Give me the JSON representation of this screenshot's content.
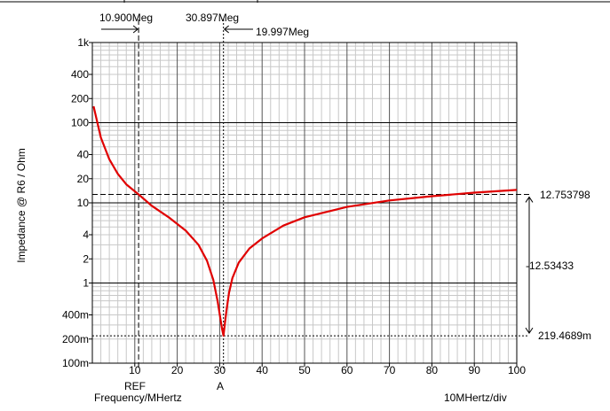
{
  "chart_data": {
    "type": "line",
    "ylabel": "Impedance @ R6 / Ohm",
    "xlabel": "Frequency/MHertz",
    "x_scale_label": "10MHertz/div",
    "xlim": [
      0,
      100
    ],
    "ylim": [
      0.1,
      1000
    ],
    "yscale": "log",
    "grid": true,
    "x_ticks": [
      "10",
      "20",
      "30",
      "40",
      "50",
      "60",
      "70",
      "80",
      "90",
      "100"
    ],
    "y_ticks": [
      {
        "label": "1k",
        "value": 1000
      },
      {
        "label": "400",
        "value": 400
      },
      {
        "label": "200",
        "value": 200
      },
      {
        "label": "100",
        "value": 100
      },
      {
        "label": "40",
        "value": 40
      },
      {
        "label": "20",
        "value": 20
      },
      {
        "label": "10",
        "value": 10
      },
      {
        "label": "4",
        "value": 4
      },
      {
        "label": "2",
        "value": 2
      },
      {
        "label": "1",
        "value": 1
      },
      {
        "label": "400m",
        "value": 0.4
      },
      {
        "label": "200m",
        "value": 0.2
      },
      {
        "label": "100m",
        "value": 0.1
      }
    ],
    "series": [
      {
        "color": "#e00000",
        "x": [
          0.3,
          2,
          4,
          6,
          8,
          10.9,
          14,
          18,
          22,
          25,
          27,
          28.5,
          29.5,
          30.2,
          30.6,
          30.897,
          31.2,
          31.6,
          32.2,
          33,
          34.5,
          37,
          40,
          45,
          50,
          60,
          70,
          80,
          90,
          100
        ],
        "y": [
          160,
          65,
          35,
          23,
          17,
          12.75,
          9.2,
          6.6,
          4.5,
          3.0,
          1.9,
          1.1,
          0.6,
          0.35,
          0.26,
          0.22,
          0.3,
          0.45,
          0.75,
          1.15,
          1.8,
          2.7,
          3.6,
          5.2,
          6.6,
          8.9,
          10.7,
          12.1,
          13.4,
          14.5
        ]
      }
    ],
    "cursors": {
      "ref_x": 10.9,
      "a_x": 30.897,
      "ref_label": "REF",
      "a_label": "A",
      "ref_freq_label": "10.900Meg",
      "a_freq_label": "30.897Meg",
      "delta_freq_label": "19.997Meg",
      "ref_y": 12.753798,
      "a_y": 0.2194689,
      "ref_y_label": "12.753798",
      "a_y_label": "219.4689m",
      "delta_y_label": "-12.53433"
    }
  }
}
